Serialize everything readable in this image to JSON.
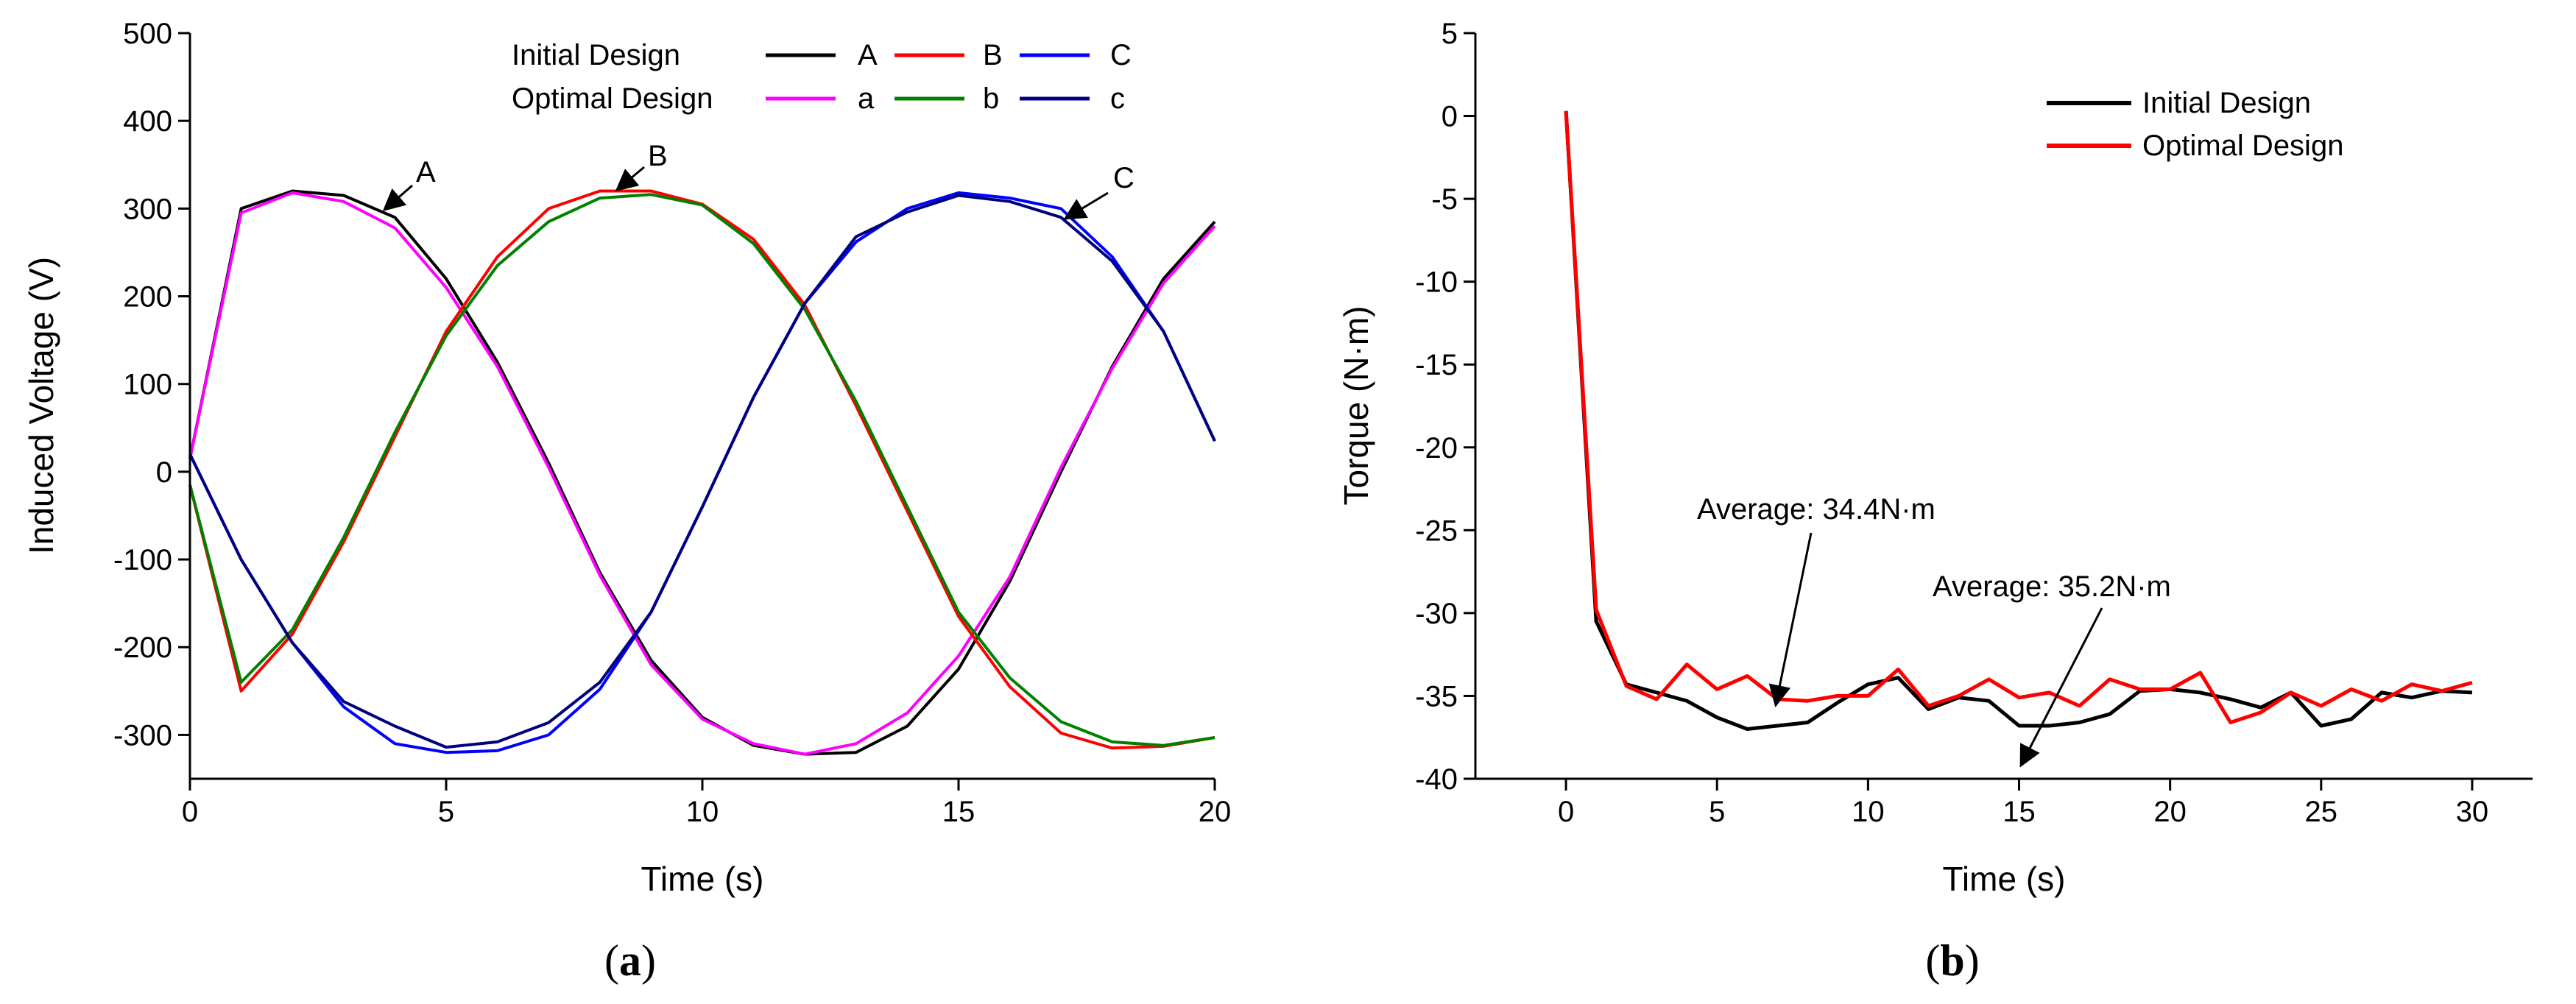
{
  "chart_data": [
    {
      "type": "line",
      "panel_label": {
        "open": "(",
        "letter": "a",
        "close": ")"
      },
      "title": "",
      "xlabel": "Time (s)",
      "ylabel": "Induced Voltage (V)",
      "xlim": [
        0,
        20
      ],
      "ylim": [
        -350,
        500
      ],
      "xticks": [
        0,
        5,
        10,
        15,
        20
      ],
      "yticks": [
        -300,
        -200,
        -100,
        0,
        100,
        200,
        300,
        400,
        500
      ],
      "legend": {
        "position": "top-right",
        "rows": [
          {
            "label": "Initial Design",
            "entries": [
              {
                "name": "A",
                "color": "#000000"
              },
              {
                "name": "B",
                "color": "#ff0000"
              },
              {
                "name": "C",
                "color": "#0000ff"
              }
            ]
          },
          {
            "label": "Optimal Design",
            "entries": [
              {
                "name": "a",
                "color": "#ff00ff"
              },
              {
                "name": "b",
                "color": "#008000"
              },
              {
                "name": "c",
                "color": "#000080"
              }
            ]
          }
        ]
      },
      "annotations": [
        {
          "text": "A",
          "x": 4.0,
          "y": 290
        },
        {
          "text": "B",
          "x": 8.3,
          "y": 320
        },
        {
          "text": "C",
          "x": 17.0,
          "y": 295
        }
      ],
      "x": [
        0,
        1,
        2,
        3,
        4,
        5,
        6,
        7,
        8,
        9,
        10,
        11,
        12,
        13,
        14,
        15,
        16,
        17,
        18,
        19,
        20
      ],
      "series": [
        {
          "name": "A",
          "color": "#000000",
          "values": [
            15,
            300,
            320,
            315,
            290,
            220,
            125,
            10,
            -115,
            -215,
            -280,
            -312,
            -322,
            -320,
            -290,
            -225,
            -125,
            0,
            120,
            220,
            285
          ]
        },
        {
          "name": "a",
          "color": "#ff00ff",
          "values": [
            15,
            295,
            318,
            308,
            278,
            210,
            120,
            5,
            -118,
            -220,
            -282,
            -310,
            -322,
            -310,
            -275,
            -210,
            -120,
            5,
            118,
            215,
            280
          ]
        },
        {
          "name": "B",
          "color": "#ff0000",
          "values": [
            -15,
            -250,
            -185,
            -80,
            40,
            160,
            245,
            300,
            320,
            320,
            305,
            265,
            190,
            75,
            -45,
            -165,
            -245,
            -298,
            -315,
            -313,
            -303
          ]
        },
        {
          "name": "b",
          "color": "#008000",
          "values": [
            -15,
            -240,
            -180,
            -75,
            45,
            155,
            235,
            285,
            312,
            316,
            304,
            260,
            185,
            80,
            -40,
            -160,
            -235,
            -285,
            -308,
            -312,
            -303
          ]
        },
        {
          "name": "C",
          "color": "#0000ff",
          "values": [
            20,
            -100,
            -195,
            -268,
            -310,
            -320,
            -318,
            -300,
            -248,
            -160,
            -40,
            85,
            192,
            262,
            300,
            318,
            312,
            300,
            245,
            160,
            35
          ]
        },
        {
          "name": "c",
          "color": "#000080",
          "values": [
            20,
            -100,
            -195,
            -262,
            -290,
            -314,
            -308,
            -286,
            -240,
            -160,
            -40,
            85,
            192,
            268,
            296,
            315,
            308,
            290,
            240,
            160,
            35
          ]
        }
      ]
    },
    {
      "type": "line",
      "panel_label": {
        "open": "(",
        "letter": "b",
        "close": ")"
      },
      "title": "",
      "xlabel": "Time (s)",
      "ylabel": "Torque (N·m)",
      "xlim": [
        -3,
        32
      ],
      "ylim": [
        -40,
        5
      ],
      "xticks": [
        0,
        5,
        10,
        15,
        20,
        25,
        30
      ],
      "yticks": [
        -40,
        -35,
        -30,
        -25,
        -20,
        -15,
        -10,
        -5,
        0,
        5
      ],
      "legend": {
        "position": "top-right",
        "entries": [
          {
            "name": "Initial Design",
            "color": "#000000"
          },
          {
            "name": "Optimal Design",
            "color": "#ff0000"
          }
        ]
      },
      "annotations": [
        {
          "text": "Average: 34.4N·m",
          "text_x": 7,
          "text_y": -28.5,
          "arrow_to_x": 7,
          "arrow_to_y": -35.8
        },
        {
          "text": "Average: 35.2N·m",
          "text_x": 18.5,
          "text_y": -31.5,
          "arrow_to_x": 15,
          "arrow_to_y": -36.8
        }
      ],
      "x": [
        0,
        1,
        2,
        3,
        4,
        5,
        6,
        7,
        8,
        9,
        10,
        11,
        12,
        13,
        14,
        15,
        16,
        17,
        18,
        19,
        20,
        21,
        22,
        23,
        24,
        25,
        26,
        27,
        28,
        29,
        30
      ],
      "series": [
        {
          "name": "Initial Design",
          "color": "#000000",
          "values": [
            0.3,
            -30.5,
            -34.3,
            -34.8,
            -35.3,
            -36.3,
            -37.0,
            -36.8,
            -36.6,
            -35.4,
            -34.3,
            -33.9,
            -35.8,
            -35.1,
            -35.3,
            -36.8,
            -36.8,
            -36.6,
            -36.1,
            -34.7,
            -34.6,
            -34.8,
            -35.2,
            -35.7,
            -34.8,
            -36.8,
            -36.4,
            -34.8,
            -35.1,
            -34.7,
            -34.8
          ]
        },
        {
          "name": "Optimal Design",
          "color": "#ff0000",
          "values": [
            0.3,
            -29.8,
            -34.4,
            -35.2,
            -33.1,
            -34.6,
            -33.8,
            -35.2,
            -35.3,
            -35.0,
            -35.0,
            -33.4,
            -35.6,
            -35.0,
            -34.0,
            -35.1,
            -34.8,
            -35.6,
            -34.0,
            -34.6,
            -34.6,
            -33.6,
            -36.6,
            -36.0,
            -34.8,
            -35.6,
            -34.6,
            -35.3,
            -34.3,
            -34.7,
            -34.2
          ]
        }
      ]
    }
  ]
}
